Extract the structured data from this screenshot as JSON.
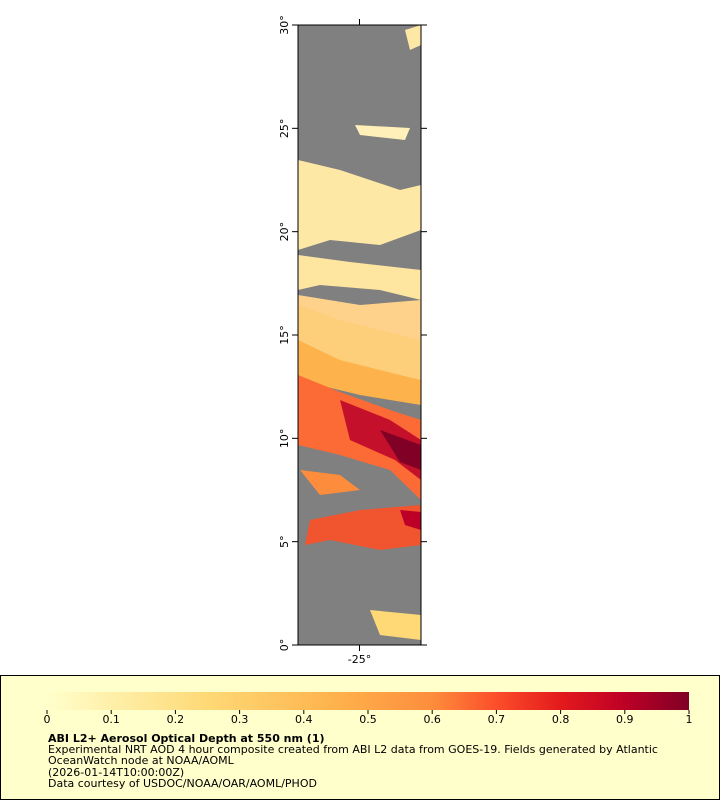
{
  "map": {
    "xlim": [
      -28,
      -22
    ],
    "ylim": [
      0,
      30
    ],
    "xticks": [
      {
        "value": -25,
        "label": "-25°"
      }
    ],
    "yticks": [
      {
        "value": 0,
        "label": "0°"
      },
      {
        "value": 5,
        "label": "5°"
      },
      {
        "value": 10,
        "label": "10°"
      },
      {
        "value": 15,
        "label": "15°"
      },
      {
        "value": 20,
        "label": "20°"
      },
      {
        "value": 25,
        "label": "25°"
      },
      {
        "value": 30,
        "label": "30°"
      }
    ]
  },
  "colorbar": {
    "range": [
      0,
      1
    ],
    "ticks": [
      0,
      0.1,
      0.2,
      0.3,
      0.4,
      0.5,
      0.6,
      0.7,
      0.8,
      0.9,
      1
    ]
  },
  "legend": {
    "title": "ABI L2+ Aerosol Optical Depth at 550 nm (1)",
    "lines": [
      "Experimental NRT AOD 4 hour composite created from ABI L2 data from GOES-19. Fields generated by Atlantic",
      "OceanWatch node at NOAA/AOML",
      "(2026-01-14T10:00:00Z)",
      "Data courtesy of USDOC/NOAA/OAR/AOML/PHOD"
    ]
  }
}
